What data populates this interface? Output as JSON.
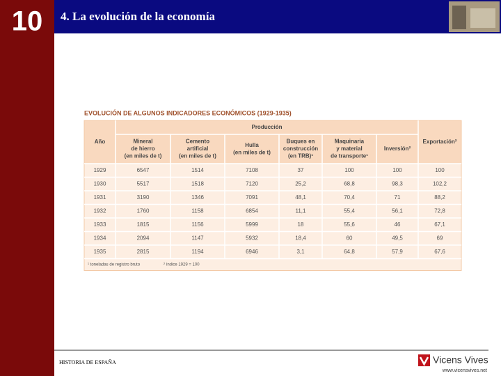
{
  "header": {
    "number": "10",
    "title": "4. La evolución de la economía"
  },
  "table": {
    "title": "EVOLUCIÓN DE ALGUNOS INDICADORES ECONÓMICOS (1929-1935)",
    "group_header": "Producción",
    "columns": [
      [
        "Año"
      ],
      [
        "Mineral",
        "de hierro",
        "(en miles de t)"
      ],
      [
        "Cemento",
        "artificial",
        "(en miles de t)"
      ],
      [
        "Hulla",
        "(en miles de t)"
      ],
      [
        "Buques en",
        "construcción",
        "(en TRB)¹"
      ],
      [
        "Maquinaria",
        "y material",
        "de transporte¹"
      ],
      [
        "Inversión²"
      ],
      [
        "Exportación²"
      ]
    ],
    "rows": [
      [
        "1929",
        "6547",
        "1514",
        "7108",
        "37",
        "100",
        "100",
        "100"
      ],
      [
        "1930",
        "5517",
        "1518",
        "7120",
        "25,2",
        "68,8",
        "98,3",
        "102,2"
      ],
      [
        "1931",
        "3190",
        "1346",
        "7091",
        "48,1",
        "70,4",
        "71",
        "88,2"
      ],
      [
        "1932",
        "1760",
        "1158",
        "6854",
        "11,1",
        "55,4",
        "56,1",
        "72,8"
      ],
      [
        "1933",
        "1815",
        "1156",
        "5999",
        "18",
        "55,6",
        "46",
        "67,1"
      ],
      [
        "1934",
        "2094",
        "1147",
        "5932",
        "18,4",
        "60",
        "49,5",
        "69"
      ],
      [
        "1935",
        "2815",
        "1194",
        "6946",
        "3,1",
        "64,8",
        "57,9",
        "67,6"
      ]
    ],
    "footnotes": [
      "¹ toneladas de registro bruto",
      "² índice 1929 = 100"
    ]
  },
  "footer": {
    "left": "HISTORIA DE ESPAÑA",
    "brand": "Vicens Vives",
    "url": "www.vicensvives.net"
  }
}
